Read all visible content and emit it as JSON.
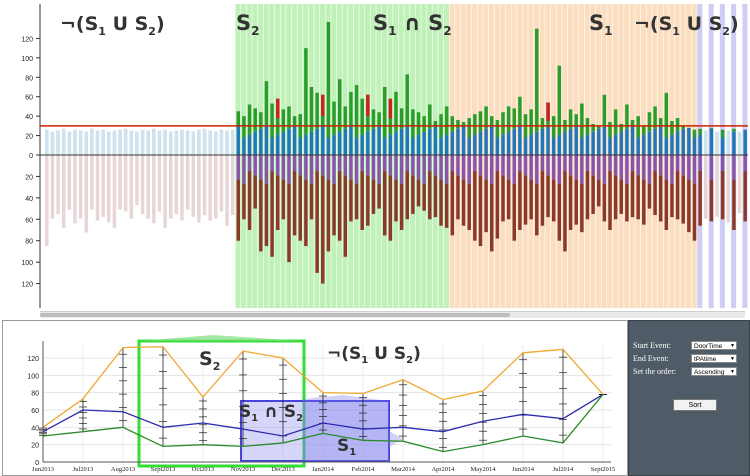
{
  "top_chart": {
    "y_ticks_up": [
      "120",
      "100",
      "80",
      "60",
      "40",
      "20",
      "0"
    ],
    "y_ticks_down": [
      "20",
      "40",
      "60",
      "80",
      "100",
      "120"
    ],
    "region_labels": {
      "not_union_left": {
        "neg": "¬",
        "open": "(S",
        "s1": "1",
        "u": " U S",
        "s2": "2",
        "close": ")"
      },
      "s2": {
        "main": "S",
        "sub": "2"
      },
      "intersect": {
        "a": "S",
        "a_sub": "1",
        "op": " ∩ S",
        "b_sub": "2"
      },
      "s1": {
        "main": "S",
        "sub": "1"
      },
      "not_union_right": {
        "neg": "¬",
        "open": "(S",
        "s1": "1",
        "u": " U S",
        "s2": "2",
        "close": ")"
      }
    },
    "threshold_value": 30
  },
  "chart_data": [
    {
      "type": "bar",
      "ylim": [
        -135,
        135
      ],
      "threshold": 30,
      "bars_up": [
        26,
        24,
        25,
        27,
        24,
        26,
        25,
        24,
        27,
        25,
        26,
        24,
        25,
        26,
        27,
        25,
        24,
        26,
        25,
        27,
        25,
        26,
        24,
        25,
        26,
        25,
        24,
        26,
        27,
        25,
        24,
        26,
        25,
        26,
        45,
        40,
        52,
        48,
        44,
        76,
        53,
        58,
        47,
        50,
        40,
        42,
        110,
        70,
        64,
        62,
        137,
        55,
        78,
        50,
        65,
        72,
        58,
        62,
        47,
        44,
        70,
        58,
        65,
        48,
        83,
        47,
        44,
        40,
        52,
        35,
        42,
        50,
        40,
        36,
        34,
        38,
        42,
        45,
        50,
        40,
        36,
        44,
        50,
        48,
        60,
        42,
        47,
        130,
        38,
        54,
        40,
        92,
        36,
        47,
        42,
        53,
        38,
        32,
        30,
        62,
        34,
        47,
        32,
        52,
        36,
        40,
        30,
        44,
        50,
        38,
        64,
        35,
        38,
        30,
        28,
        26,
        27,
        25,
        28,
        24,
        26,
        25,
        27,
        24,
        26
      ],
      "bars_down": [
        100,
        70,
        65,
        80,
        60,
        75,
        70,
        85,
        60,
        72,
        68,
        74,
        80,
        60,
        62,
        70,
        55,
        65,
        70,
        75,
        62,
        80,
        70,
        65,
        72,
        60,
        68,
        74,
        66,
        72,
        70,
        62,
        78,
        66,
        80,
        60,
        70,
        50,
        90,
        85,
        95,
        70,
        60,
        100,
        75,
        80,
        85,
        60,
        110,
        120,
        90,
        75,
        80,
        95,
        62,
        60,
        70,
        66,
        55,
        50,
        75,
        80,
        62,
        70,
        60,
        55,
        48,
        52,
        60,
        58,
        66,
        68,
        75,
        60,
        66,
        70,
        80,
        85,
        72,
        90,
        78,
        62,
        60,
        80,
        70,
        65,
        60,
        75,
        66,
        58,
        62,
        80,
        90,
        70,
        65,
        72,
        60,
        55,
        48,
        62,
        70,
        60,
        55,
        62,
        58,
        60,
        65,
        50,
        56,
        62,
        70,
        58,
        60,
        64,
        72,
        80,
        66,
        70,
        62,
        68,
        60,
        74,
        70,
        64,
        62
      ]
    },
    {
      "type": "line",
      "categories": [
        "Jun2013",
        "Jul2013",
        "Aug2013",
        "Sept2013",
        "Oct2013",
        "Nov2013",
        "Dec2013",
        "Jan2014",
        "Feb2014",
        "Mar2014",
        "Apr2014",
        "May2014",
        "Jun2014",
        "Jul2014",
        "Sept2015"
      ],
      "yticks": [
        0,
        20,
        40,
        60,
        80,
        100,
        120
      ],
      "ylim": [
        0,
        135
      ],
      "series": [
        {
          "values": [
            40,
            73,
            132,
            133,
            75,
            128,
            120,
            80,
            79,
            95,
            72,
            82,
            126,
            130,
            78
          ],
          "color": "#f0a830"
        },
        {
          "values": [
            35,
            60,
            58,
            40,
            45,
            38,
            30,
            45,
            38,
            40,
            35,
            47,
            55,
            50,
            78
          ],
          "color": "#2b2bb0"
        },
        {
          "values": [
            30,
            35,
            40,
            18,
            20,
            18,
            22,
            33,
            25,
            24,
            12,
            20,
            30,
            22,
            78
          ],
          "color": "#2a8a2a"
        }
      ],
      "region_labels": {
        "s2": {
          "main": "S",
          "sub": "2"
        },
        "intersect": {
          "a": "S",
          "a_sub": "1",
          "op": " ∩ S",
          "b_sub": "2"
        },
        "s1": {
          "main": "S",
          "sub": "1"
        },
        "not_union": {
          "neg": "¬",
          "open": "(S",
          "s1": "1",
          "u": " U S",
          "s2": "2",
          "close": ")"
        }
      }
    }
  ],
  "controls": {
    "start_event_label": "Start Event:",
    "start_event_value": "DoorTime",
    "end_event_label": "End Event:",
    "end_event_value": "tPAtime",
    "order_label": "Set the order:",
    "order_value": "Ascending",
    "sort_label": "Sort"
  },
  "colors": {
    "s2_region": "#b8f0b0",
    "intersect_region": "#fbd9b8",
    "s1_region": "#c8c8f4",
    "bar_blue": "#2277bb",
    "bar_green": "#2a9d2a",
    "bar_red": "#cc2222",
    "bar_purple": "#8855aa",
    "bar_brown": "#8b3a2a",
    "threshold": "#cc2200"
  }
}
